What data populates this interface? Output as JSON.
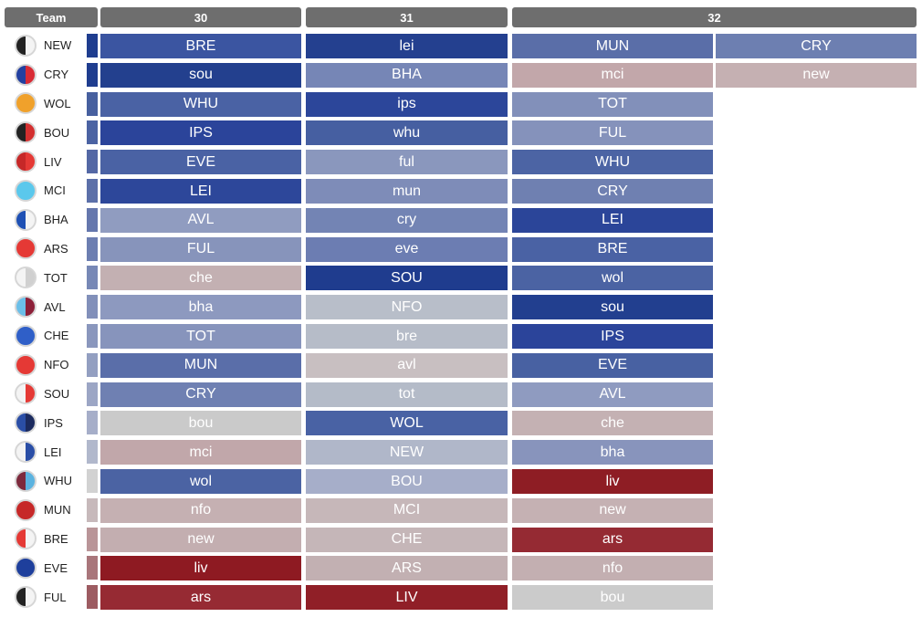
{
  "header": {
    "team_label": "Team",
    "rounds": [
      {
        "label": "30",
        "slots": 1
      },
      {
        "label": "31",
        "slots": 1
      },
      {
        "label": "32",
        "slots": 2
      }
    ]
  },
  "chart_data": {
    "type": "table",
    "columns": [
      "Team",
      "30",
      "31",
      "32"
    ],
    "rows": [
      {
        "team": "NEW",
        "badge": [
          "#222222",
          "#f4f4f4"
        ],
        "strip": "#1f3d8f",
        "fixtures": [
          [
            {
              "opp": "BRE",
              "color": "#3b55a1"
            }
          ],
          [
            {
              "opp": "lei",
              "color": "#24408f"
            }
          ],
          [
            {
              "opp": "MUN",
              "color": "#5a6ea8"
            },
            {
              "opp": "CRY",
              "color": "#6d7fb1"
            }
          ]
        ]
      },
      {
        "team": "CRY",
        "badge": [
          "#2340a0",
          "#d92b35"
        ],
        "strip": "#1f3d8f",
        "fixtures": [
          [
            {
              "opp": "sou",
              "color": "#23408e"
            }
          ],
          [
            {
              "opp": "BHA",
              "color": "#7686b6"
            }
          ],
          [
            {
              "opp": "mci",
              "color": "#c2a7aa"
            },
            {
              "opp": "new",
              "color": "#c5b0b2"
            }
          ]
        ]
      },
      {
        "team": "WOL",
        "badge": [
          "#f0a12b",
          "#f0a12b"
        ],
        "strip": "#47609f",
        "fixtures": [
          [
            {
              "opp": "WHU",
              "color": "#4a62a4"
            }
          ],
          [
            {
              "opp": "ips",
              "color": "#2c469a"
            }
          ],
          [
            {
              "opp": "TOT",
              "color": "#8290ba"
            }
          ]
        ]
      },
      {
        "team": "BOU",
        "badge": [
          "#222222",
          "#d32f2f"
        ],
        "strip": "#4b63a3",
        "fixtures": [
          [
            {
              "opp": "IPS",
              "color": "#2b449a"
            }
          ],
          [
            {
              "opp": "whu",
              "color": "#465fa1"
            }
          ],
          [
            {
              "opp": "FUL",
              "color": "#8592bb"
            }
          ]
        ]
      },
      {
        "team": "LIV",
        "badge": [
          "#c62828",
          "#e53935"
        ],
        "strip": "#5468a5",
        "fixtures": [
          [
            {
              "opp": "EVE",
              "color": "#4a62a4"
            }
          ],
          [
            {
              "opp": "ful",
              "color": "#8a97bd"
            }
          ],
          [
            {
              "opp": "WHU",
              "color": "#4c64a4"
            }
          ]
        ]
      },
      {
        "team": "MCI",
        "badge": [
          "#5bc8ec",
          "#5bc8ec"
        ],
        "strip": "#5c70a9",
        "fixtures": [
          [
            {
              "opp": "LEI",
              "color": "#2d479a"
            }
          ],
          [
            {
              "opp": "mun",
              "color": "#7e8cb8"
            }
          ],
          [
            {
              "opp": "CRY",
              "color": "#6f80b1"
            }
          ]
        ]
      },
      {
        "team": "BHA",
        "badge": [
          "#1e50b4",
          "#f4f4f4"
        ],
        "strip": "#6577ad",
        "fixtures": [
          [
            {
              "opp": "AVL",
              "color": "#909cc0"
            }
          ],
          [
            {
              "opp": "cry",
              "color": "#7384b4"
            }
          ],
          [
            {
              "opp": "LEI",
              "color": "#2b4599"
            }
          ]
        ]
      },
      {
        "team": "ARS",
        "badge": [
          "#e53935",
          "#e53935"
        ],
        "strip": "#6c7eb1",
        "fixtures": [
          [
            {
              "opp": "FUL",
              "color": "#8794bb"
            }
          ],
          [
            {
              "opp": "eve",
              "color": "#6c7db2"
            }
          ],
          [
            {
              "opp": "BRE",
              "color": "#4a62a4"
            }
          ]
        ]
      },
      {
        "team": "TOT",
        "badge": [
          "#f4f4f4",
          "#d0d0d0"
        ],
        "strip": "#7788b6",
        "fixtures": [
          [
            {
              "opp": "che",
              "color": "#c3b0b2"
            }
          ],
          [
            {
              "opp": "SOU",
              "color": "#1f3c8e"
            }
          ],
          [
            {
              "opp": "wol",
              "color": "#4b63a3"
            }
          ]
        ]
      },
      {
        "team": "AVL",
        "badge": [
          "#6bbfe9",
          "#8d2039"
        ],
        "strip": "#8290ba",
        "fixtures": [
          [
            {
              "opp": "bha",
              "color": "#8d99bf"
            }
          ],
          [
            {
              "opp": "NFO",
              "color": "#b8bec9"
            }
          ],
          [
            {
              "opp": "sou",
              "color": "#223f8f"
            }
          ]
        ]
      },
      {
        "team": "CHE",
        "badge": [
          "#2f5fc8",
          "#2f5fc8"
        ],
        "strip": "#8a97bd",
        "fixtures": [
          [
            {
              "opp": "TOT",
              "color": "#8794bc"
            }
          ],
          [
            {
              "opp": "bre",
              "color": "#b6bcc8"
            }
          ],
          [
            {
              "opp": "IPS",
              "color": "#2b449a"
            }
          ]
        ]
      },
      {
        "team": "NFO",
        "badge": [
          "#e53935",
          "#e53935"
        ],
        "strip": "#939fc1",
        "fixtures": [
          [
            {
              "opp": "MUN",
              "color": "#5a6ea9"
            }
          ],
          [
            {
              "opp": "avl",
              "color": "#c8bfc1"
            }
          ],
          [
            {
              "opp": "EVE",
              "color": "#4861a2"
            }
          ]
        ]
      },
      {
        "team": "SOU",
        "badge": [
          "#f4f4f4",
          "#e53935"
        ],
        "strip": "#9ca6c5",
        "fixtures": [
          [
            {
              "opp": "CRY",
              "color": "#6f80b2"
            }
          ],
          [
            {
              "opp": "tot",
              "color": "#b4bbc8"
            }
          ],
          [
            {
              "opp": "AVL",
              "color": "#8f9bc0"
            }
          ]
        ]
      },
      {
        "team": "IPS",
        "badge": [
          "#2a4ea6",
          "#1b2a5e"
        ],
        "strip": "#a6aec9",
        "fixtures": [
          [
            {
              "opp": "bou",
              "color": "#cacaca"
            }
          ],
          [
            {
              "opp": "WOL",
              "color": "#4962a4"
            }
          ],
          [
            {
              "opp": "che",
              "color": "#c4b1b3"
            }
          ]
        ]
      },
      {
        "team": "LEI",
        "badge": [
          "#f4f4f4",
          "#2a4ea6"
        ],
        "strip": "#b1b8cc",
        "fixtures": [
          [
            {
              "opp": "mci",
              "color": "#c1a7aa"
            }
          ],
          [
            {
              "opp": "NEW",
              "color": "#b0b7c9"
            }
          ],
          [
            {
              "opp": "bha",
              "color": "#8894bc"
            }
          ]
        ]
      },
      {
        "team": "WHU",
        "badge": [
          "#7d2a3d",
          "#5bb3e0"
        ],
        "strip": "#d2d2d2",
        "fixtures": [
          [
            {
              "opp": "wol",
              "color": "#4b63a3"
            }
          ],
          [
            {
              "opp": "BOU",
              "color": "#a6aec9"
            }
          ],
          [
            {
              "opp": "liv",
              "color": "#8e1d24"
            }
          ]
        ]
      },
      {
        "team": "MUN",
        "badge": [
          "#c62828",
          "#c62828"
        ],
        "strip": "#c7b9bb",
        "fixtures": [
          [
            {
              "opp": "nfo",
              "color": "#c5b0b2"
            }
          ],
          [
            {
              "opp": "MCI",
              "color": "#c6b7b9"
            }
          ],
          [
            {
              "opp": "new",
              "color": "#c5b1b3"
            }
          ]
        ]
      },
      {
        "team": "BRE",
        "badge": [
          "#e53935",
          "#f4f4f4"
        ],
        "strip": "#b99598",
        "fixtures": [
          [
            {
              "opp": "new",
              "color": "#c3aeb0"
            }
          ],
          [
            {
              "opp": "CHE",
              "color": "#c5b6b8"
            }
          ],
          [
            {
              "opp": "ars",
              "color": "#952a33"
            }
          ]
        ]
      },
      {
        "team": "EVE",
        "badge": [
          "#1e3f9c",
          "#1e3f9c"
        ],
        "strip": "#a9767b",
        "fixtures": [
          [
            {
              "opp": "liv",
              "color": "#8e1a22"
            }
          ],
          [
            {
              "opp": "ARS",
              "color": "#c2b0b2"
            }
          ],
          [
            {
              "opp": "nfo",
              "color": "#c3afb1"
            }
          ]
        ]
      },
      {
        "team": "FUL",
        "badge": [
          "#222222",
          "#f4f4f4"
        ],
        "strip": "#9d5c62",
        "fixtures": [
          [
            {
              "opp": "ars",
              "color": "#962a33"
            }
          ],
          [
            {
              "opp": "LIV",
              "color": "#901f27"
            }
          ],
          [
            {
              "opp": "bou",
              "color": "#cbcbcb"
            }
          ]
        ]
      }
    ]
  }
}
